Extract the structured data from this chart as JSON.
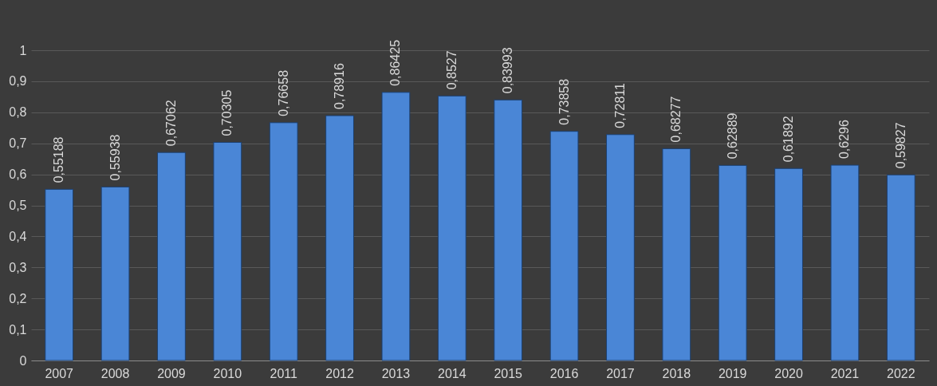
{
  "chart_data": {
    "type": "bar",
    "categories": [
      "2007",
      "2008",
      "2009",
      "2010",
      "2011",
      "2012",
      "2013",
      "2014",
      "2015",
      "2016",
      "2017",
      "2018",
      "2019",
      "2020",
      "2021",
      "2022"
    ],
    "values": [
      0.55188,
      0.55938,
      0.67062,
      0.70305,
      0.76658,
      0.78916,
      0.86425,
      0.8527,
      0.83993,
      0.73858,
      0.72811,
      0.68277,
      0.62889,
      0.61892,
      0.6296,
      0.59827
    ],
    "value_labels": [
      "0,55188",
      "0,55938",
      "0,67062",
      "0,70305",
      "0,76658",
      "0,78916",
      "0,86425",
      "0,8527",
      "0,83993",
      "0,73858",
      "0,72811",
      "0,68277",
      "0,62889",
      "0,61892",
      "0,6296",
      "0,59827"
    ],
    "color": "#4a86d6",
    "ylim": [
      0,
      1
    ],
    "yticks": [
      0,
      {
        "value": 0.1,
        "label": "0,1"
      },
      {
        "value": 0.2,
        "label": "0,2"
      },
      {
        "value": 0.3,
        "label": "0,3"
      },
      {
        "value": 0.4,
        "label": "0,4"
      },
      {
        "value": 0.5,
        "label": "0,5"
      },
      {
        "value": 0.6,
        "label": "0,6"
      },
      {
        "value": 0.7,
        "label": "0,7"
      },
      {
        "value": 0.8,
        "label": "0,8"
      },
      {
        "value": 0.9,
        "label": "0,9"
      },
      1
    ],
    "grid": "y"
  }
}
